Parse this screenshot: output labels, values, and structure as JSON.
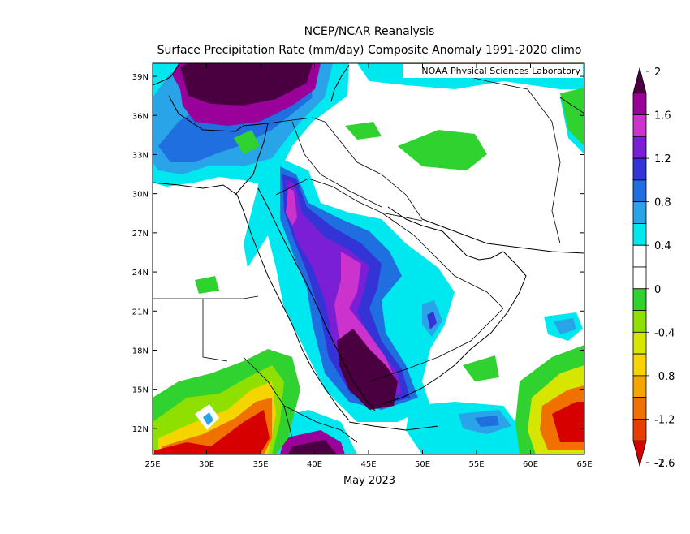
{
  "title": "NCEP/NCAR Reanalysis",
  "subtitle": "Surface Precipitation Rate (mm/day) Composite Anomaly 1991-2020 climo",
  "credit": "NOAA Physical Sciences Laboratory",
  "period": "May 2023",
  "map": {
    "lon_range": [
      25,
      65
    ],
    "lat_range": [
      10,
      40
    ],
    "x_ticks": [
      "25E",
      "30E",
      "35E",
      "40E",
      "45E",
      "50E",
      "55E",
      "60E",
      "65E"
    ],
    "y_ticks": [
      "12N",
      "15N",
      "18N",
      "21N",
      "24N",
      "27N",
      "30N",
      "33N",
      "36N",
      "39N"
    ]
  },
  "colorbar": {
    "labels": [
      "2",
      "1.6",
      "1.2",
      "0.8",
      "0.4",
      "0",
      "-0.4",
      "-0.8",
      "-1.2",
      "-1.6",
      "-2"
    ],
    "colors": [
      "#4a0040",
      "#9a009a",
      "#cc33cc",
      "#7a1fd6",
      "#3333d6",
      "#1f6fe0",
      "#2aa4e8",
      "#00e8ef",
      "#ffffff",
      "#ffffff",
      "#2fd22f",
      "#8fe000",
      "#d6e600",
      "#f5d400",
      "#f5a500",
      "#f07000",
      "#e83c00",
      "#d60000"
    ]
  }
}
